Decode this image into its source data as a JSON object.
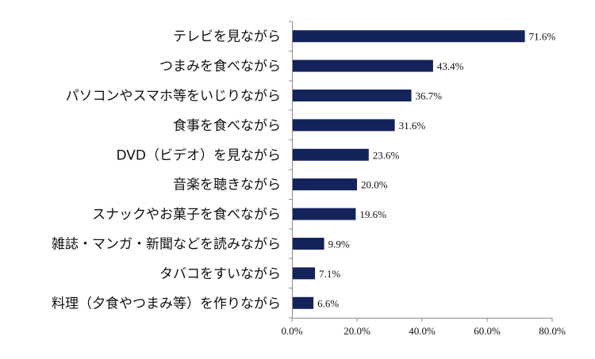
{
  "chart_data": {
    "type": "bar",
    "orientation": "horizontal",
    "categories": [
      "テレビを見ながら",
      "つまみを食べながら",
      "パソコンやスマホ等をいじりながら",
      "食事を食べながら",
      "DVD（ビデオ）を見ながら",
      "音楽を聴きながら",
      "スナックやお菓子を食べながら",
      "雑誌・マンガ・新聞などを読みながら",
      "タバコをすいながら",
      "料理（夕食やつまみ等）を作りながら"
    ],
    "values": [
      71.6,
      43.4,
      36.7,
      31.6,
      23.6,
      20.0,
      19.6,
      9.9,
      7.1,
      6.6
    ],
    "value_labels": [
      "71.6%",
      "43.4%",
      "36.7%",
      "31.6%",
      "23.6%",
      "20.0%",
      "19.6%",
      "9.9%",
      "7.1%",
      "6.6%"
    ],
    "xlim": [
      0,
      80
    ],
    "x_ticks": [
      0,
      20,
      40,
      60,
      80
    ],
    "x_tick_labels": [
      "0.0%",
      "20.0%",
      "40.0%",
      "60.0%",
      "80.0%"
    ],
    "bar_color": "#14235a",
    "grid": false
  }
}
